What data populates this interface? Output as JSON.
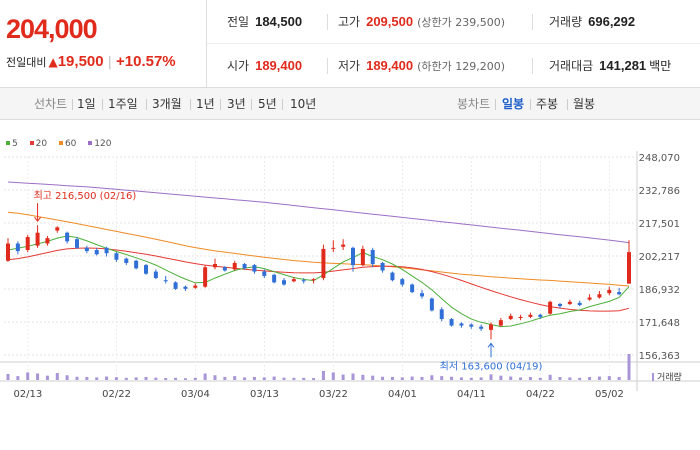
{
  "quote": {
    "price": "204,000",
    "change_label": "전일대비",
    "change_arrow": "▲",
    "change_value": "19,500",
    "change_pct": "+10.57%"
  },
  "stats": {
    "prev_close_label": "전일",
    "prev_close": "184,500",
    "high_label": "고가",
    "high": "209,500",
    "upper_limit": "(상한가 239,500)",
    "volume_label": "거래량",
    "volume": "696,292",
    "open_label": "시가",
    "open": "189,400",
    "low_label": "저가",
    "low": "189,400",
    "lower_limit": "(하한가 129,200)",
    "amount_label": "거래대금",
    "amount": "141,281",
    "amount_unit": "백만"
  },
  "toolbar": {
    "line_chart_label": "선차트",
    "periods": [
      "1일",
      "1주일",
      "3개월",
      "1년",
      "3년",
      "5년",
      "10년"
    ],
    "candle_chart_label": "봉차트",
    "candle_periods": [
      "일봉",
      "주봉",
      "월봉"
    ],
    "active_candle_period": "일봉"
  },
  "colors": {
    "up": "#e02b1c",
    "down": "#2f6fd6",
    "ma5": "#4caf3a",
    "ma20": "#e53935",
    "ma60": "#f08a24",
    "ma120": "#9c6fc6",
    "volume": "#a894d6"
  },
  "chart_data": {
    "type": "candlestick",
    "legend": [
      "5",
      "20",
      "60",
      "120"
    ],
    "y_ticks": [
      "248,070",
      "232,786",
      "217,501",
      "202,217",
      "186,932",
      "171,648",
      "156,363"
    ],
    "ylim": [
      156363,
      248070
    ],
    "x_labels": [
      "02/13",
      "02/22",
      "03/04",
      "03/13",
      "03/22",
      "04/01",
      "04/11",
      "04/22",
      "05/02"
    ],
    "volume_label": "거래량",
    "annotations": {
      "high": "최고 216,500 (02/16)",
      "low": "최저 163,600 (04/19)"
    },
    "candles": [
      {
        "o": 200000,
        "c": 208000,
        "h": 210500,
        "l": 199500
      },
      {
        "o": 208000,
        "c": 204500,
        "h": 209000,
        "l": 203000
      },
      {
        "o": 205000,
        "c": 211000,
        "h": 212000,
        "l": 204000
      },
      {
        "o": 207000,
        "c": 213000,
        "h": 216500,
        "l": 206000
      },
      {
        "o": 208000,
        "c": 210500,
        "h": 211500,
        "l": 207000
      },
      {
        "o": 214000,
        "c": 215500,
        "h": 216000,
        "l": 213000
      },
      {
        "o": 213000,
        "c": 209000,
        "h": 213500,
        "l": 208000
      },
      {
        "o": 210000,
        "c": 206000,
        "h": 211000,
        "l": 205500
      },
      {
        "o": 206000,
        "c": 204500,
        "h": 207000,
        "l": 203500
      },
      {
        "o": 205000,
        "c": 203000,
        "h": 206000,
        "l": 202500
      },
      {
        "o": 206000,
        "c": 203500,
        "h": 206500,
        "l": 202000
      },
      {
        "o": 203500,
        "c": 200500,
        "h": 204000,
        "l": 199500
      },
      {
        "o": 201000,
        "c": 199000,
        "h": 201500,
        "l": 198000
      },
      {
        "o": 200000,
        "c": 196500,
        "h": 200500,
        "l": 196000
      },
      {
        "o": 198000,
        "c": 194000,
        "h": 198500,
        "l": 193500
      },
      {
        "o": 195000,
        "c": 192000,
        "h": 196000,
        "l": 191500
      },
      {
        "o": 191000,
        "c": 190500,
        "h": 193000,
        "l": 189500
      },
      {
        "o": 190000,
        "c": 187000,
        "h": 190500,
        "l": 186500
      },
      {
        "o": 188000,
        "c": 187000,
        "h": 188500,
        "l": 186000
      },
      {
        "o": 187500,
        "c": 188500,
        "h": 189500,
        "l": 187000
      },
      {
        "o": 188000,
        "c": 197000,
        "h": 198000,
        "l": 187500
      },
      {
        "o": 197000,
        "c": 198500,
        "h": 201000,
        "l": 196000
      },
      {
        "o": 197000,
        "c": 195500,
        "h": 197500,
        "l": 195000
      },
      {
        "o": 196000,
        "c": 199000,
        "h": 200000,
        "l": 195500
      },
      {
        "o": 198500,
        "c": 196500,
        "h": 199000,
        "l": 196000
      },
      {
        "o": 198000,
        "c": 195000,
        "h": 198500,
        "l": 194000
      },
      {
        "o": 195000,
        "c": 193000,
        "h": 196000,
        "l": 192000
      },
      {
        "o": 193500,
        "c": 190000,
        "h": 194000,
        "l": 189500
      },
      {
        "o": 191000,
        "c": 189000,
        "h": 192000,
        "l": 188500
      },
      {
        "o": 190500,
        "c": 191500,
        "h": 192500,
        "l": 190000
      },
      {
        "o": 191000,
        "c": 190500,
        "h": 192000,
        "l": 189500
      },
      {
        "o": 191000,
        "c": 191500,
        "h": 192000,
        "l": 189500
      },
      {
        "o": 192000,
        "c": 205500,
        "h": 207500,
        "l": 191000
      },
      {
        "o": 206000,
        "c": 206000,
        "h": 209500,
        "l": 204000
      },
      {
        "o": 206500,
        "c": 207500,
        "h": 210000,
        "l": 205000
      },
      {
        "o": 206000,
        "c": 198000,
        "h": 206500,
        "l": 195000
      },
      {
        "o": 198000,
        "c": 205500,
        "h": 207000,
        "l": 197500
      },
      {
        "o": 205000,
        "c": 198500,
        "h": 206000,
        "l": 197000
      },
      {
        "o": 199000,
        "c": 195500,
        "h": 199500,
        "l": 194500
      },
      {
        "o": 194500,
        "c": 191000,
        "h": 195000,
        "l": 190500
      },
      {
        "o": 191500,
        "c": 189000,
        "h": 192000,
        "l": 188000
      },
      {
        "o": 189000,
        "c": 185500,
        "h": 189500,
        "l": 185000
      },
      {
        "o": 185000,
        "c": 183500,
        "h": 186500,
        "l": 182500
      },
      {
        "o": 182500,
        "c": 177000,
        "h": 183000,
        "l": 176500
      },
      {
        "o": 177500,
        "c": 173000,
        "h": 178500,
        "l": 172000
      },
      {
        "o": 173000,
        "c": 170000,
        "h": 173500,
        "l": 169500
      },
      {
        "o": 171000,
        "c": 170000,
        "h": 171500,
        "l": 169000
      },
      {
        "o": 170500,
        "c": 169500,
        "h": 171000,
        "l": 168500
      },
      {
        "o": 169500,
        "c": 168500,
        "h": 170500,
        "l": 167500
      },
      {
        "o": 168000,
        "c": 170500,
        "h": 171500,
        "l": 163600
      },
      {
        "o": 170000,
        "c": 172500,
        "h": 173500,
        "l": 169500
      },
      {
        "o": 173000,
        "c": 174500,
        "h": 175500,
        "l": 172500
      },
      {
        "o": 173500,
        "c": 174000,
        "h": 175000,
        "l": 172500
      },
      {
        "o": 174000,
        "c": 175000,
        "h": 176000,
        "l": 173500
      },
      {
        "o": 175000,
        "c": 174000,
        "h": 175500,
        "l": 173000
      },
      {
        "o": 175500,
        "c": 181000,
        "h": 181500,
        "l": 175000
      },
      {
        "o": 180000,
        "c": 179000,
        "h": 180500,
        "l": 178000
      },
      {
        "o": 180000,
        "c": 181000,
        "h": 182000,
        "l": 179500
      },
      {
        "o": 180500,
        "c": 179500,
        "h": 181500,
        "l": 179000
      },
      {
        "o": 182000,
        "c": 183000,
        "h": 184500,
        "l": 181500
      },
      {
        "o": 183000,
        "c": 184500,
        "h": 186000,
        "l": 182500
      },
      {
        "o": 185000,
        "c": 186500,
        "h": 188000,
        "l": 184000
      },
      {
        "o": 185500,
        "c": 184500,
        "h": 187500,
        "l": 184000
      },
      {
        "o": 189400,
        "c": 204000,
        "h": 209500,
        "l": 189400
      }
    ],
    "ma5": [
      205000,
      205800,
      206700,
      207800,
      209000,
      210500,
      211500,
      210800,
      209200,
      207500,
      205800,
      204300,
      202900,
      201400,
      199800,
      198000,
      195800,
      193500,
      191500,
      189800,
      190000,
      192000,
      193800,
      195500,
      196600,
      197200,
      196400,
      195000,
      193600,
      192200,
      191400,
      190800,
      193500,
      196500,
      199500,
      201500,
      203800,
      202000,
      200500,
      198500,
      196000,
      193000,
      190000,
      186500,
      182500,
      178500,
      175500,
      173000,
      171500,
      170500,
      169500,
      169800,
      170800,
      172000,
      173500,
      174800,
      175500,
      176500,
      177200,
      178800,
      180000,
      181200,
      183000,
      188000
    ],
    "ma20": [
      200500,
      201000,
      201800,
      202800,
      203800,
      204800,
      205500,
      205800,
      205900,
      205800,
      205500,
      205000,
      204400,
      203700,
      203000,
      202200,
      201300,
      200400,
      199500,
      198700,
      198000,
      197500,
      197000,
      196500,
      196100,
      195700,
      195300,
      195000,
      194700,
      194500,
      194400,
      194400,
      194700,
      195200,
      195800,
      196400,
      197000,
      197300,
      197500,
      197500,
      197200,
      196700,
      196000,
      195000,
      193800,
      192400,
      190900,
      189300,
      187700,
      186200,
      184700,
      183300,
      182000,
      180800,
      179700,
      178800,
      178100,
      177500,
      177100,
      176800,
      176700,
      176700,
      176900,
      178000
    ],
    "ma60": [
      222500,
      222000,
      221300,
      220500,
      219700,
      218900,
      218100,
      217200,
      216300,
      215400,
      214500,
      213600,
      212700,
      211800,
      210900,
      210000,
      209000,
      208000,
      207000,
      206100,
      205300,
      204600,
      204000,
      203400,
      202800,
      202200,
      201600,
      201100,
      200600,
      200100,
      199700,
      199300,
      199000,
      198800,
      198600,
      198400,
      198200,
      197900,
      197600,
      197200,
      196800,
      196300,
      195800,
      195300,
      194800,
      194300,
      193800,
      193400,
      193000,
      192600,
      192300,
      192000,
      191700,
      191400,
      191100,
      190900,
      190600,
      190300,
      190000,
      189700,
      189400,
      189100,
      188700,
      188300
    ],
    "ma120": [
      236500,
      236200,
      235900,
      235700,
      235400,
      235100,
      234800,
      234500,
      234200,
      233900,
      233500,
      233100,
      232700,
      232300,
      231900,
      231500,
      231100,
      230700,
      230300,
      229900,
      229500,
      229100,
      228700,
      228300,
      227900,
      227500,
      227100,
      226600,
      226100,
      225600,
      225100,
      224600,
      224100,
      223600,
      223100,
      222600,
      222100,
      221600,
      221100,
      220600,
      220100,
      219600,
      219100,
      218600,
      218100,
      217600,
      217100,
      216600,
      216100,
      215600,
      215100,
      214600,
      214100,
      213600,
      213100,
      212600,
      212100,
      211600,
      211100,
      210600,
      210100,
      209600,
      209000,
      208400
    ],
    "volumes": [
      28,
      18,
      35,
      30,
      20,
      32,
      22,
      15,
      14,
      12,
      16,
      13,
      10,
      12,
      14,
      11,
      9,
      10,
      8,
      10,
      30,
      22,
      14,
      18,
      12,
      14,
      12,
      16,
      11,
      10,
      10,
      9,
      42,
      35,
      25,
      30,
      24,
      20,
      15,
      14,
      12,
      16,
      14,
      22,
      18,
      15,
      12,
      10,
      12,
      26,
      20,
      16,
      12,
      14,
      10,
      24,
      14,
      12,
      10,
      14,
      16,
      18,
      14,
      120
    ]
  }
}
